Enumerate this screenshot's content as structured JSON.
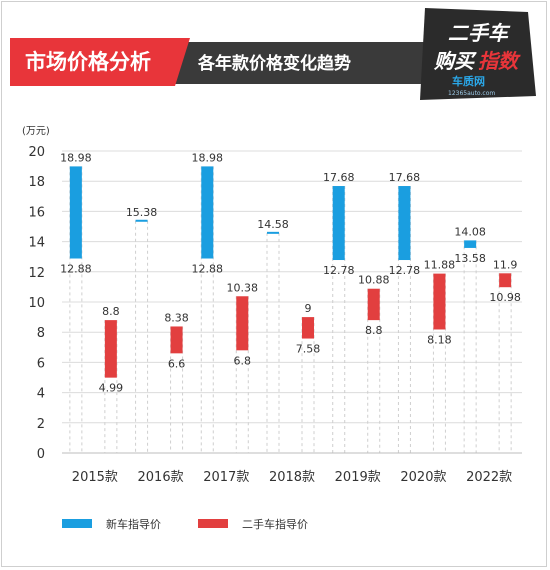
{
  "header": {
    "title": "市场价格分析",
    "subtitle": "各年款价格变化趋势",
    "logo_line1": "二手车",
    "logo_line2a": "购买",
    "logo_line2b": "指数",
    "logo_site": "车质网",
    "logo_url": "12365auto.com"
  },
  "colors": {
    "new": "#1a9ee0",
    "used": "#e23f3f",
    "header_red": "#e8353a",
    "header_dark": "#3a3a3a",
    "grid": "#d8d8d8"
  },
  "chart_data": {
    "type": "bar",
    "unit_label": "(万元)",
    "categories": [
      "2015款",
      "2016款",
      "2017款",
      "2018款",
      "2019款",
      "2020款",
      "2022款"
    ],
    "ylim": [
      0,
      20
    ],
    "yticks": [
      0,
      2,
      4,
      6,
      8,
      10,
      12,
      14,
      16,
      18,
      20
    ],
    "grid": true,
    "legend_position": "bottom",
    "series": [
      {
        "name": "新车指导价",
        "color": "#1a9ee0",
        "ranges": [
          [
            12.88,
            18.98
          ],
          [
            15.38,
            15.38
          ],
          [
            12.88,
            18.98
          ],
          [
            14.58,
            14.58
          ],
          [
            12.78,
            17.68
          ],
          [
            12.78,
            17.68
          ],
          [
            13.58,
            14.08
          ]
        ],
        "top_labels": [
          "18.98",
          "15.38",
          "18.98",
          "14.58",
          "17.68",
          "17.68",
          "14.08"
        ],
        "bottom_labels": [
          "12.88",
          "",
          "12.88",
          "",
          "12.78",
          "12.78",
          "13.58"
        ]
      },
      {
        "name": "二手车指导价",
        "color": "#e23f3f",
        "ranges": [
          [
            4.99,
            8.8
          ],
          [
            6.6,
            8.38
          ],
          [
            6.8,
            10.38
          ],
          [
            7.58,
            9
          ],
          [
            8.8,
            10.88
          ],
          [
            8.18,
            11.88
          ],
          [
            10.98,
            11.9
          ]
        ],
        "top_labels": [
          "8.8",
          "8.38",
          "10.38",
          "9",
          "10.88",
          "11.88",
          "11.9"
        ],
        "bottom_labels": [
          "4.99",
          "6.6",
          "6.8",
          "7.58",
          "8.8",
          "8.18",
          "10.98"
        ]
      }
    ]
  }
}
